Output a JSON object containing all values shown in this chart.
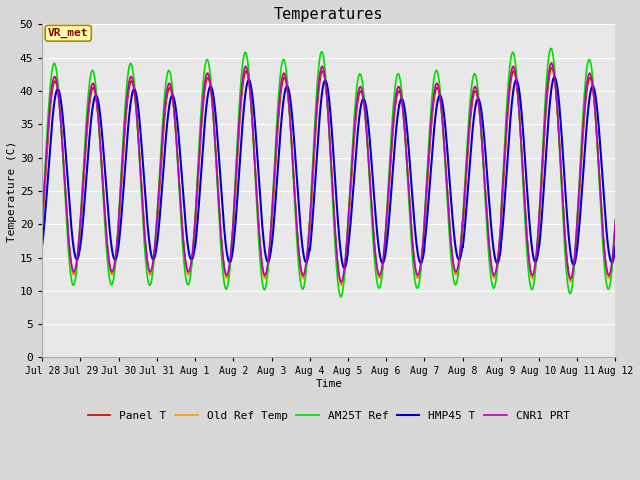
{
  "title": "Temperatures",
  "xlabel": "Time",
  "ylabel": "Temperature (C)",
  "ylim": [
    0,
    50
  ],
  "yticks": [
    0,
    5,
    10,
    15,
    20,
    25,
    30,
    35,
    40,
    45,
    50
  ],
  "plot_bg_color": "#e8e8e8",
  "fig_bg_color": "#d8d8d8",
  "annotation_text": "VR_met",
  "annotation_bg": "#ffffaa",
  "annotation_border": "#aa8800",
  "legend_entries": [
    "Panel T",
    "Old Ref Temp",
    "AM25T Ref",
    "HMP45 T",
    "CNR1 PRT"
  ],
  "line_colors": [
    "#cc0000",
    "#ff9900",
    "#00dd00",
    "#0000cc",
    "#bb00bb"
  ],
  "line_widths": [
    1.2,
    1.2,
    1.2,
    1.5,
    1.2
  ],
  "n_days": 15,
  "date_labels": [
    "Jul 28",
    "Jul 29",
    "Jul 30",
    "Jul 31",
    "Aug 1",
    "Aug 2",
    "Aug 3",
    "Aug 4",
    "Aug 5",
    "Aug 6",
    "Aug 7",
    "Aug 8",
    "Aug 9",
    "Aug 10",
    "Aug 11",
    "Aug 12"
  ],
  "font_size_title": 11,
  "font_size_axis": 8,
  "font_size_tick": 7,
  "font_size_legend": 8,
  "font_size_annot": 8
}
